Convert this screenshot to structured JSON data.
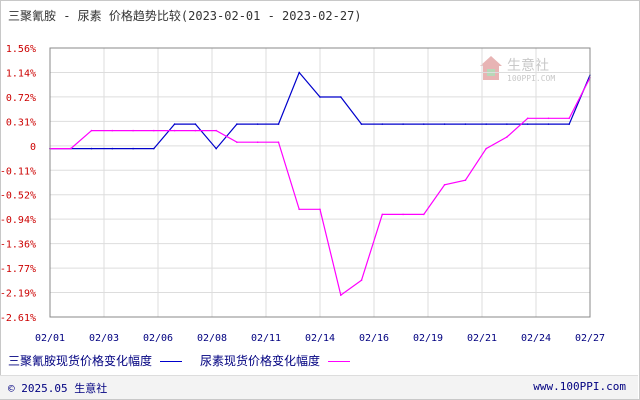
{
  "title": "三聚氰胺 - 尿素 价格趋势比较(2023-02-01 - 2023-02-27)",
  "legend": [
    {
      "label": "三聚氰胺现货价格变化幅度",
      "color": "#0000cc"
    },
    {
      "label": "尿素现货价格变化幅度",
      "color": "#ff00ff"
    }
  ],
  "footer": {
    "copyright": "© 2025.05 生意社",
    "site": "www.100PPI.com"
  },
  "watermark": {
    "name": "生意社",
    "url": "100PPI.COM"
  },
  "chart_data": {
    "type": "line",
    "title": "三聚氰胺 - 尿素 价格趋势比较(2023-02-01 - 2023-02-27)",
    "xlabel": "",
    "ylabel": "",
    "x_tick_labels": [
      "02/01",
      "02/03",
      "02/06",
      "02/08",
      "02/11",
      "02/14",
      "02/16",
      "02/19",
      "02/21",
      "02/24",
      "02/27"
    ],
    "y_tick_labels": [
      "1.56%",
      "1.14%",
      "0.72%",
      "0.31%",
      "0",
      "-0.11%",
      "-0.52%",
      "-0.94%",
      "-1.36%",
      "-1.77%",
      "-2.19%",
      "-2.61%"
    ],
    "ylim": [
      -2.61,
      1.56
    ],
    "grid": true,
    "legend_position": "bottom",
    "x": [
      "02/01",
      "02/02",
      "02/03",
      "02/04",
      "02/05",
      "02/06",
      "02/07",
      "02/08",
      "02/09",
      "02/10",
      "02/11",
      "02/12",
      "02/13",
      "02/14",
      "02/15",
      "02/16",
      "02/17",
      "02/18",
      "02/19",
      "02/20",
      "02/21",
      "02/22",
      "02/23",
      "02/24",
      "02/25",
      "02/26",
      "02/27"
    ],
    "series": [
      {
        "name": "三聚氰胺现货价格变化幅度",
        "color": "#0000cc",
        "values": [
          0,
          0,
          0,
          0,
          0,
          0,
          0.38,
          0.38,
          0,
          0.38,
          0.38,
          0.38,
          1.18,
          0.8,
          0.8,
          0.38,
          0.38,
          0.38,
          0.38,
          0.38,
          0.38,
          0.38,
          0.38,
          0.38,
          0.38,
          0.38,
          1.14
        ]
      },
      {
        "name": "尿素现货价格变化幅度",
        "color": "#ff00ff",
        "values": [
          0,
          0,
          0.28,
          0.28,
          0.28,
          0.28,
          0.28,
          0.28,
          0.28,
          0.1,
          0.1,
          0.1,
          -0.94,
          -0.94,
          -2.27,
          -2.04,
          -1.02,
          -1.02,
          -1.02,
          -0.56,
          -0.49,
          0,
          0.18,
          0.47,
          0.47,
          0.47,
          1.1
        ]
      }
    ]
  }
}
